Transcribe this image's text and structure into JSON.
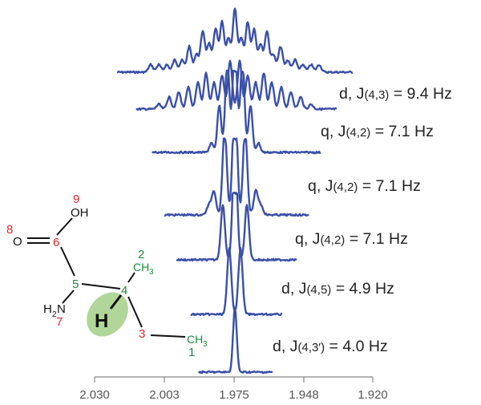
{
  "colors": {
    "spectrum": "#3a4fa8",
    "red": "#e2262a",
    "green": "#1f8a3b",
    "highlight": "#a9d28f",
    "text": "#222222",
    "axis": "#888888"
  },
  "axis": {
    "unit": "ppm",
    "ticks": [
      "2.030",
      "2.003",
      "1.975",
      "1.948",
      "1.920"
    ],
    "tick_values": [
      2.03,
      2.003,
      1.975,
      1.948,
      1.92
    ],
    "range": [
      2.03,
      1.92
    ]
  },
  "traces": [
    {
      "pattern": "full (d,q,q,q,d,d)",
      "label_main": "",
      "label_j": "",
      "label_value": ""
    },
    {
      "pattern": "q,q,q,d,d",
      "label_main": "d, J",
      "label_j": "(4,3)",
      "label_value": " = 9.4 Hz"
    },
    {
      "pattern": "q,q,d,d",
      "label_main": "q, J",
      "label_j": "(4,2)",
      "label_value": " = 7.1 Hz"
    },
    {
      "pattern": "q,d,d",
      "label_main": "q, J",
      "label_j": "(4,2)",
      "label_value": " = 7.1 Hz"
    },
    {
      "pattern": "d,d",
      "label_main": "q, J",
      "label_j": "(4,2)",
      "label_value": " = 7.1 Hz"
    },
    {
      "pattern": "d",
      "label_main": "d, J",
      "label_j": "(4,5)",
      "label_value": " = 4.9 Hz"
    },
    {
      "pattern": "singlet",
      "label_main": "d, J",
      "label_j": "(4,3′)",
      "label_value": " =  4.0 Hz"
    }
  ],
  "molecule": {
    "atoms": {
      "oh": "OH",
      "o": "O",
      "h2n_h": "H",
      "h2n_2": "2",
      "h2n_n": "N",
      "h": "H",
      "ch3_top": "CH",
      "ch3_top_sub": "3",
      "ch3_bottom": "CH",
      "ch3_bottom_sub": "3"
    },
    "numbers": {
      "n9": "9",
      "n8": "8",
      "n6": "6",
      "n5": "5",
      "n7": "7",
      "n4": "4",
      "n2": "2",
      "n3": "3",
      "n1": "1"
    }
  }
}
